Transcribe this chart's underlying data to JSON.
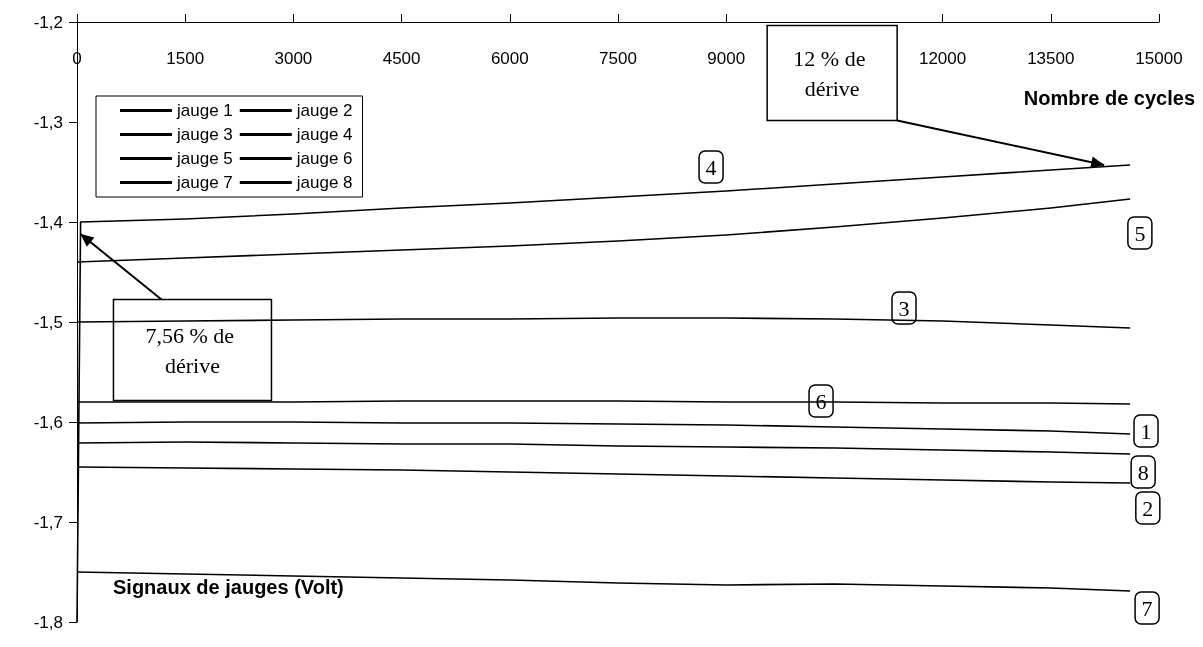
{
  "chart_data": {
    "type": "line",
    "xlabel": "Nombre de cycles",
    "ylabel": "Signaux de jauges (Volt)",
    "x": [
      0,
      1500,
      3000,
      4500,
      6000,
      7500,
      9000,
      10500,
      12000,
      13500,
      14600
    ],
    "series": [
      {
        "name": "jauge 1",
        "color": "#000000",
        "values": [
          -1.601,
          -1.6,
          -1.6,
          -1.601,
          -1.601,
          -1.602,
          -1.603,
          -1.605,
          -1.607,
          -1.609,
          -1.612
        ]
      },
      {
        "name": "jauge 2",
        "color": "#000000",
        "values": [
          -1.645,
          -1.646,
          -1.647,
          -1.648,
          -1.65,
          -1.652,
          -1.654,
          -1.656,
          -1.658,
          -1.66,
          -1.661
        ]
      },
      {
        "name": "jauge 3",
        "color": "#000000",
        "values": [
          -1.5,
          -1.499,
          -1.498,
          -1.497,
          -1.497,
          -1.496,
          -1.496,
          -1.497,
          -1.499,
          -1.503,
          -1.506
        ]
      },
      {
        "name": "jauge 4",
        "color": "#000000",
        "x": [
          0,
          50,
          1500,
          3000,
          4500,
          6000,
          7500,
          9000,
          10500,
          12000,
          13500,
          14600
        ],
        "values": [
          -1.8,
          -1.4,
          -1.397,
          -1.392,
          -1.386,
          -1.381,
          -1.375,
          -1.369,
          -1.362,
          -1.355,
          -1.348,
          -1.343
        ]
      },
      {
        "name": "jauge 5",
        "color": "#000000",
        "values": [
          -1.44,
          -1.436,
          -1.432,
          -1.428,
          -1.424,
          -1.419,
          -1.413,
          -1.405,
          -1.396,
          -1.386,
          -1.377
        ]
      },
      {
        "name": "jauge 6",
        "color": "#000000",
        "values": [
          -1.58,
          -1.58,
          -1.58,
          -1.579,
          -1.579,
          -1.579,
          -1.58,
          -1.58,
          -1.581,
          -1.581,
          -1.582
        ]
      },
      {
        "name": "jauge 7",
        "color": "#000000",
        "values": [
          -1.75,
          -1.752,
          -1.754,
          -1.756,
          -1.758,
          -1.761,
          -1.763,
          -1.762,
          -1.764,
          -1.766,
          -1.769
        ]
      },
      {
        "name": "jauge 8",
        "color": "#000000",
        "values": [
          -1.621,
          -1.62,
          -1.621,
          -1.622,
          -1.622,
          -1.624,
          -1.625,
          -1.626,
          -1.628,
          -1.63,
          -1.632
        ]
      }
    ],
    "xlim": [
      0,
      15000
    ],
    "xticks": [
      0,
      1500,
      3000,
      4500,
      6000,
      7500,
      9000,
      12000,
      13500,
      15000
    ],
    "ylim": [
      -1.8,
      -1.2
    ],
    "yticks": [
      {
        "value": -1.8,
        "label": "-1,8"
      },
      {
        "value": -1.7,
        "label": "-1,7"
      },
      {
        "value": -1.6,
        "label": "-1,6"
      },
      {
        "value": -1.5,
        "label": "-1,5"
      },
      {
        "value": -1.4,
        "label": "-1,4"
      },
      {
        "value": -1.3,
        "label": "-1,3"
      },
      {
        "value": -1.2,
        "label": "-1,2"
      }
    ],
    "tick_labels": "xy",
    "grid": false,
    "legend": "top left",
    "marker": "none",
    "line_style": "solid",
    "annotations": [
      "12 % de dérive",
      {
        "text": "7,56 % de dérive",
        "x": 48,
        "y": -1.412
      },
      {
        "text": "4",
        "x": 8790,
        "y": -1.345
      },
      {
        "text": "5",
        "x": 14735,
        "y": -1.411
      },
      {
        "text": "3",
        "x": 11465,
        "y": -1.486
      },
      {
        "text": "6",
        "x": 10315,
        "y": -1.579
      },
      {
        "text": "1",
        "x": 14820,
        "y": -1.609
      },
      {
        "text": "8",
        "x": 14780,
        "y": -1.65
      },
      {
        "text": "2",
        "x": 14845,
        "y": -1.686
      },
      {
        "text": "7",
        "x": 14835,
        "y": -1.786
      }
    ]
  }
}
